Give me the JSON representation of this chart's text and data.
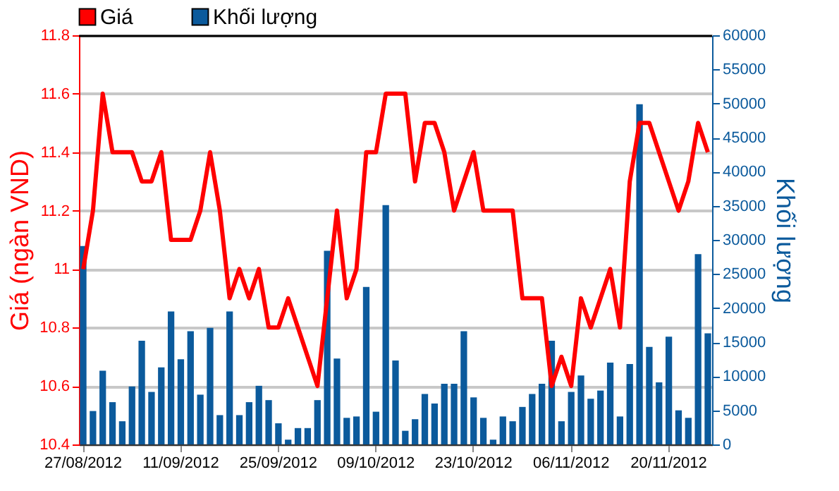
{
  "chart_data": {
    "type": "bar",
    "categories": [
      "27/08/2012",
      null,
      null,
      null,
      null,
      null,
      null,
      null,
      null,
      null,
      "11/09/2012",
      null,
      null,
      null,
      null,
      null,
      null,
      null,
      null,
      null,
      "25/09/2012",
      null,
      null,
      null,
      null,
      null,
      null,
      null,
      null,
      null,
      "09/10/2012",
      null,
      null,
      null,
      null,
      null,
      null,
      null,
      null,
      null,
      "23/10/2012",
      null,
      null,
      null,
      null,
      null,
      null,
      null,
      null,
      null,
      "06/11/2012",
      null,
      null,
      null,
      null,
      null,
      null,
      null,
      null,
      null,
      "20/11/2012",
      null,
      null,
      null,
      null
    ],
    "series": [
      {
        "name": "Giá",
        "type": "line",
        "color": "#ff0000",
        "values": [
          11.0,
          11.2,
          11.6,
          11.4,
          11.4,
          11.4,
          11.3,
          11.3,
          11.4,
          11.1,
          11.1,
          11.1,
          11.2,
          11.4,
          11.2,
          10.9,
          11.0,
          10.9,
          11.0,
          10.8,
          10.8,
          10.9,
          10.8,
          10.7,
          10.6,
          10.9,
          11.2,
          10.9,
          11.0,
          11.4,
          11.4,
          11.6,
          11.6,
          11.6,
          11.3,
          11.5,
          11.5,
          11.4,
          11.2,
          11.3,
          11.4,
          11.2,
          11.2,
          11.2,
          11.2,
          10.9,
          10.9,
          10.9,
          10.6,
          10.7,
          10.6,
          10.9,
          10.8,
          10.9,
          11.0,
          10.8,
          11.3,
          11.5,
          11.5,
          11.4,
          11.3,
          11.2,
          11.3,
          11.5,
          11.4
        ]
      },
      {
        "name": "Khối lượng",
        "axis": "y2",
        "color": "#0b5a9c",
        "values": [
          29100,
          4900,
          10800,
          6200,
          3400,
          8500,
          15200,
          7700,
          11300,
          19500,
          12500,
          16600,
          7300,
          17100,
          4300,
          19500,
          4300,
          6200,
          8600,
          6500,
          3100,
          700,
          2400,
          2400,
          6500,
          28400,
          12600,
          3900,
          4100,
          23100,
          4800,
          35100,
          12300,
          2000,
          3700,
          7400,
          6000,
          8900,
          8900,
          16600,
          6900,
          3900,
          700,
          4100,
          3400,
          5500,
          7400,
          8900,
          15200,
          3400,
          7700,
          10100,
          6700,
          7900,
          12000,
          4100,
          11800,
          49900,
          14300,
          9100,
          15800,
          5000,
          3900,
          27900,
          16300
        ]
      }
    ],
    "ylabel": "Giá (ngàn VND)",
    "y2label": "Khối lượng",
    "ylim": [
      10.4,
      11.8
    ],
    "yticks": [
      10.4,
      10.6,
      10.8,
      11,
      11.2,
      11.4,
      11.6,
      11.8
    ],
    "y2lim": [
      0,
      60000
    ],
    "y2ticks": [
      0,
      5000,
      10000,
      15000,
      20000,
      25000,
      30000,
      35000,
      40000,
      45000,
      50000,
      55000,
      60000
    ],
    "grid": "y",
    "legend": "top left",
    "marker": "none",
    "line_style": "solid"
  }
}
